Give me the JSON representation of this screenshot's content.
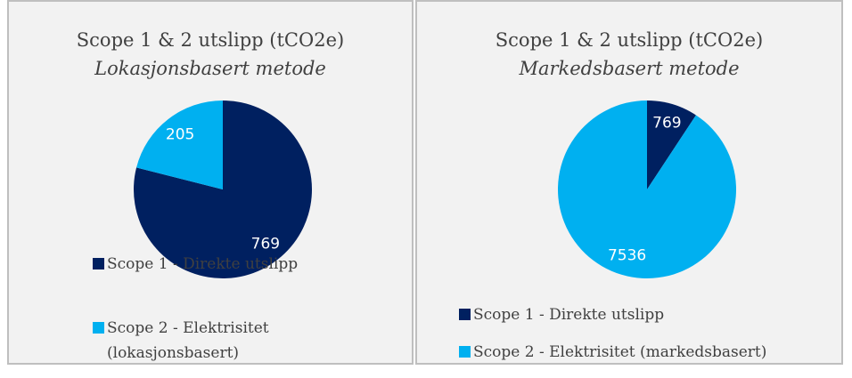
{
  "chart_data": [
    {
      "type": "pie",
      "title": "Scope 1 & 2 utslipp (tCO2e)",
      "subtitle": "Lokasjonsbasert metode",
      "categories": [
        "Scope 1 - Direkte utslipp",
        "Scope 2 - Elektrisitet (lokasjonsbasert)"
      ],
      "values": [
        769,
        205
      ],
      "colors": [
        "#002060",
        "#00b0f0"
      ]
    },
    {
      "type": "pie",
      "title": "Scope 1 & 2 utslipp (tCO2e)",
      "subtitle": "Markedsbasert metode",
      "categories": [
        "Scope 1 - Direkte utslipp",
        "Scope 2 - Elektrisitet (markedsbasert)"
      ],
      "values": [
        769,
        7536
      ],
      "colors": [
        "#002060",
        "#00b0f0"
      ]
    }
  ]
}
